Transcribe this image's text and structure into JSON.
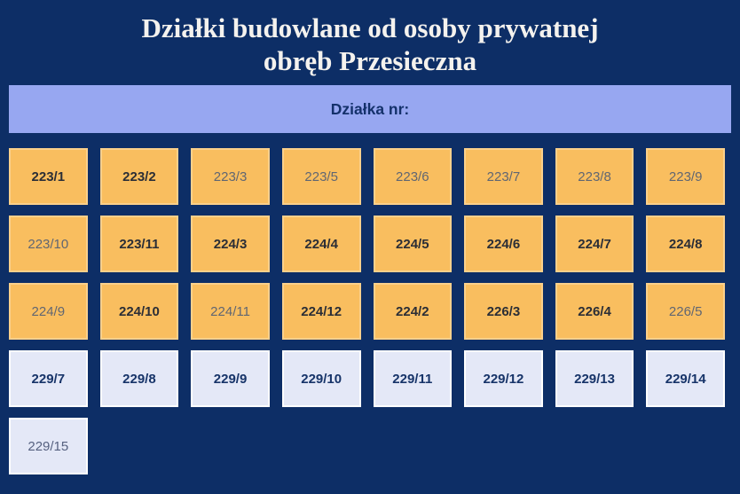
{
  "page": {
    "title_line1": "Działki budowlane od osoby prywatnej",
    "title_line2": "obręb Przesieczna",
    "banner_label": "Działka nr:"
  },
  "colors": {
    "background": "#0d2e66",
    "banner_bg": "#97a7f1",
    "banner_text": "#14316b",
    "tile_orange": "#f9be5f",
    "tile_lavender": "#e4e8f7",
    "tile_border_white": "#ffffff",
    "text_bold_dark": "#2b2e36",
    "text_normal_gray": "#606672",
    "text_navy": "#173469",
    "title_color": "#f4f2ee"
  },
  "tiles": [
    {
      "label": "223/1",
      "variant": "orange",
      "emphasis": "bold"
    },
    {
      "label": "223/2",
      "variant": "orange",
      "emphasis": "bold"
    },
    {
      "label": "223/3",
      "variant": "orange",
      "emphasis": "normal"
    },
    {
      "label": "223/5",
      "variant": "orange",
      "emphasis": "normal"
    },
    {
      "label": "223/6",
      "variant": "orange",
      "emphasis": "normal"
    },
    {
      "label": "223/7",
      "variant": "orange",
      "emphasis": "normal"
    },
    {
      "label": "223/8",
      "variant": "orange",
      "emphasis": "normal"
    },
    {
      "label": "223/9",
      "variant": "orange",
      "emphasis": "normal"
    },
    {
      "label": "223/10",
      "variant": "orange",
      "emphasis": "normal"
    },
    {
      "label": "223/11",
      "variant": "orange",
      "emphasis": "bold"
    },
    {
      "label": "224/3",
      "variant": "orange",
      "emphasis": "bold"
    },
    {
      "label": "224/4",
      "variant": "orange",
      "emphasis": "bold"
    },
    {
      "label": "224/5",
      "variant": "orange",
      "emphasis": "bold"
    },
    {
      "label": "224/6",
      "variant": "orange",
      "emphasis": "bold"
    },
    {
      "label": "224/7",
      "variant": "orange",
      "emphasis": "bold"
    },
    {
      "label": "224/8",
      "variant": "orange",
      "emphasis": "bold"
    },
    {
      "label": "224/9",
      "variant": "orange",
      "emphasis": "normal"
    },
    {
      "label": "224/10",
      "variant": "orange",
      "emphasis": "bold"
    },
    {
      "label": "224/11",
      "variant": "orange",
      "emphasis": "normal"
    },
    {
      "label": "224/12",
      "variant": "orange",
      "emphasis": "bold"
    },
    {
      "label": "224/2",
      "variant": "orange",
      "emphasis": "bold"
    },
    {
      "label": "226/3",
      "variant": "orange",
      "emphasis": "bold"
    },
    {
      "label": "226/4",
      "variant": "orange",
      "emphasis": "bold"
    },
    {
      "label": "226/5",
      "variant": "orange",
      "emphasis": "normal"
    },
    {
      "label": "229/7",
      "variant": "lavender",
      "emphasis": "bold"
    },
    {
      "label": "229/8",
      "variant": "lavender",
      "emphasis": "bold"
    },
    {
      "label": "229/9",
      "variant": "lavender",
      "emphasis": "bold"
    },
    {
      "label": "229/10",
      "variant": "lavender",
      "emphasis": "bold"
    },
    {
      "label": "229/11",
      "variant": "lavender",
      "emphasis": "bold"
    },
    {
      "label": "229/12",
      "variant": "lavender",
      "emphasis": "bold"
    },
    {
      "label": "229/13",
      "variant": "lavender",
      "emphasis": "bold"
    },
    {
      "label": "229/14",
      "variant": "lavender",
      "emphasis": "bold"
    },
    {
      "label": "229/15",
      "variant": "lavender",
      "emphasis": "normal"
    }
  ]
}
